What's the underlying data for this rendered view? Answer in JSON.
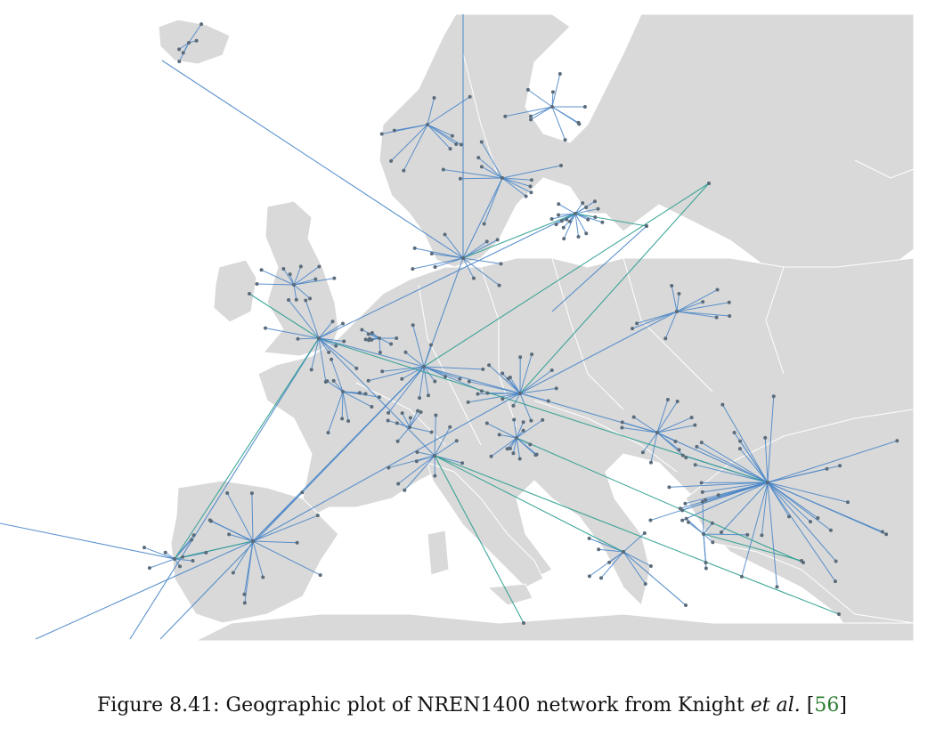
{
  "figure": {
    "caption": {
      "prefix": "Figure 8.41: Geographic plot of NREN1400 network from Knight ",
      "etal": "et al.",
      "open_bracket": " [",
      "citation": "56",
      "close_bracket": "]"
    }
  },
  "map": {
    "colors": {
      "sea": "#ffffff",
      "land": "#d9d9d9",
      "border": "#ffffff",
      "link_blue": "#4a86c8",
      "link_teal": "#2a9d8f",
      "node": "#5a6b7a"
    }
  }
}
